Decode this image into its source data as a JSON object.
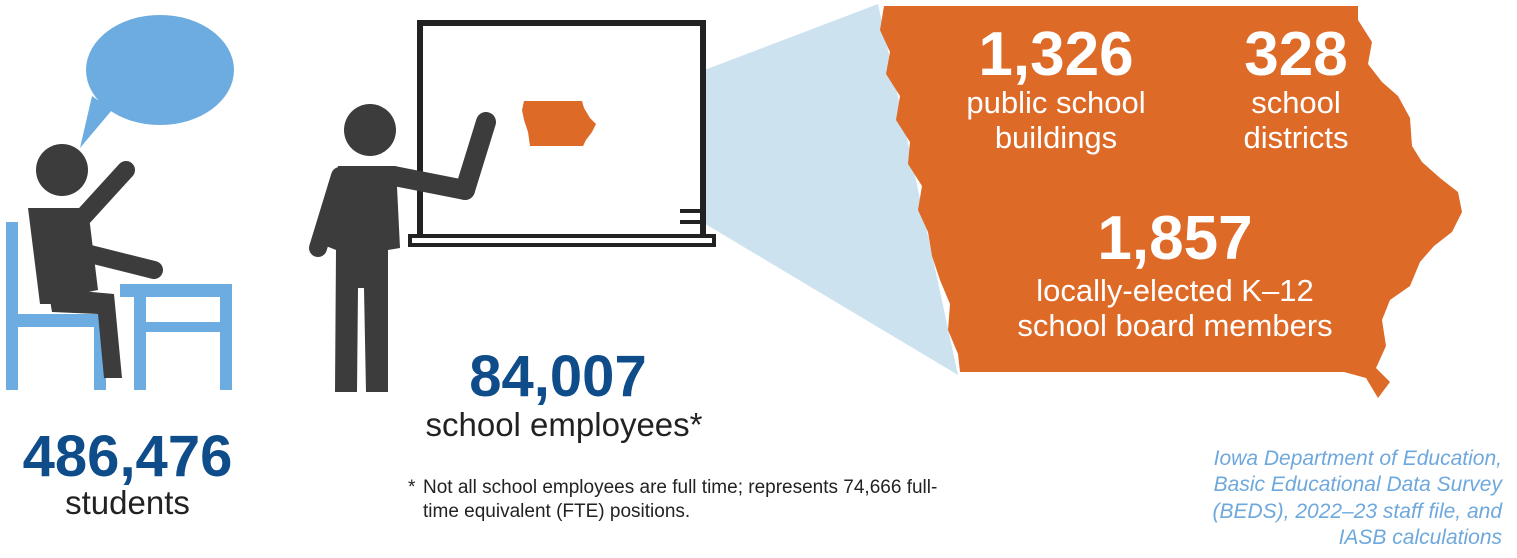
{
  "colors": {
    "navy": "#0f4c8a",
    "orange": "#de6a28",
    "light_blue": "#6cace0",
    "beam": "#cce3ef",
    "figure": "#3c3c3c"
  },
  "students": {
    "count": "486,476",
    "label": "students"
  },
  "employees": {
    "count": "84,007",
    "label": "school employees*"
  },
  "footnote": {
    "marker": "*",
    "text": "Not all school employees are full time; represents 74,666 full-time equivalent (FTE) positions."
  },
  "iowa": {
    "buildings": {
      "count": "1,326",
      "label_line1": "public school",
      "label_line2": "buildings"
    },
    "districts": {
      "count": "328",
      "label_line1": "school",
      "label_line2": "districts"
    },
    "board": {
      "count": "1,857",
      "label_line1": "locally-elected K–12",
      "label_line2": "school board members"
    }
  },
  "source": {
    "line1": "Iowa Department of Education,",
    "line2": "Basic Educational Data Survey",
    "line3": "(BEDS), 2022–23 staff file,  and",
    "line4": "IASB calculations"
  }
}
